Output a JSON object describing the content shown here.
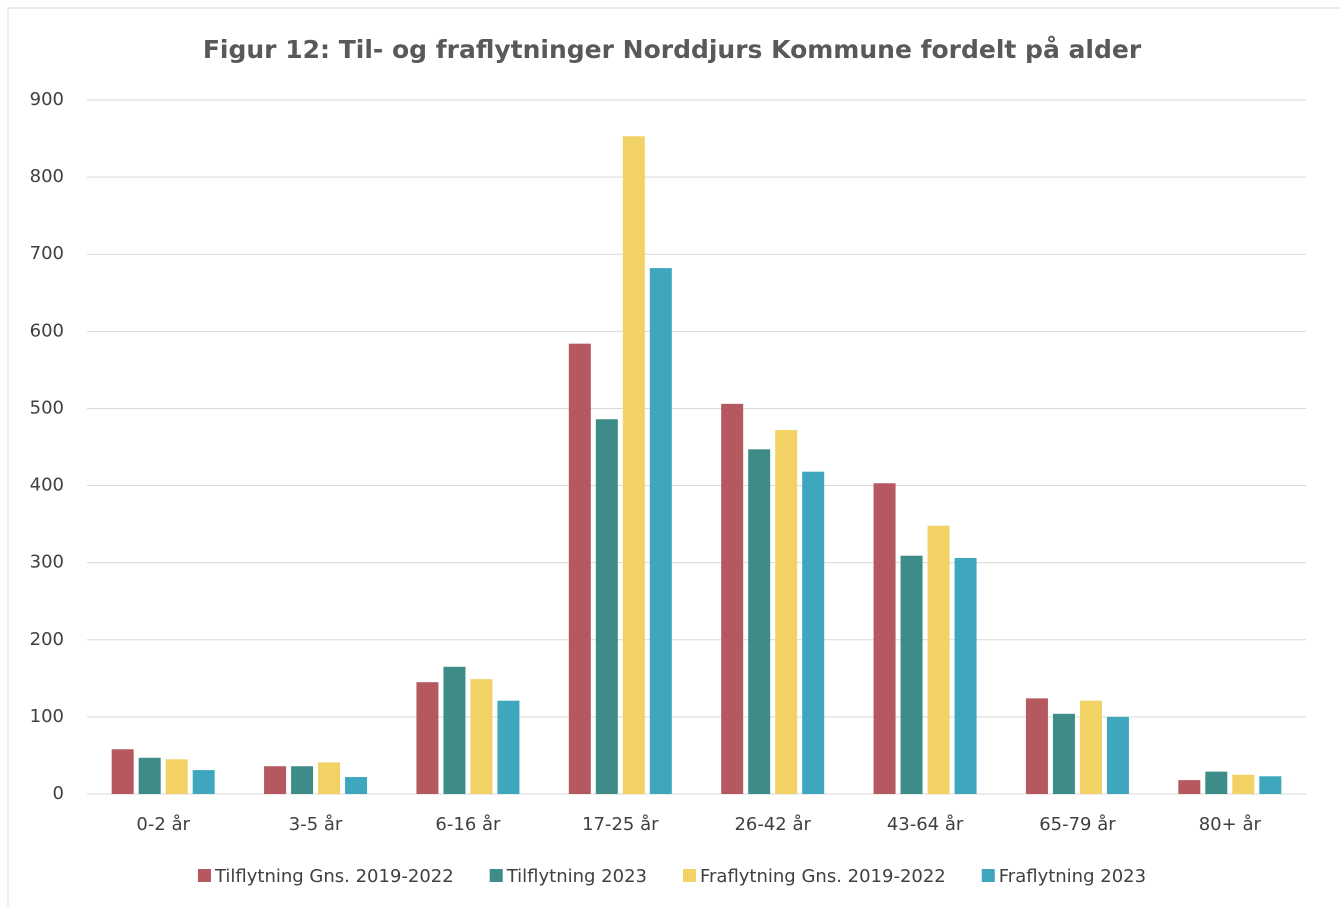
{
  "chart_data": {
    "type": "bar",
    "title": "Figur 12: Til- og fraflytninger Norddjurs Kommune fordelt på alder",
    "categories": [
      "0-2 år",
      "3-5 år",
      "6-16 år",
      "17-25 år",
      "26-42 år",
      "43-64 år",
      "65-79 år",
      "80+ år"
    ],
    "series": [
      {
        "name": "Tilflytning Gns. 2019-2022",
        "color": "#b5585f",
        "values": [
          58,
          36,
          145,
          584,
          506,
          403,
          124,
          18
        ]
      },
      {
        "name": "Tilflytning 2023",
        "color": "#3d8c87",
        "values": [
          47,
          36,
          165,
          486,
          447,
          309,
          104,
          29
        ]
      },
      {
        "name": "Fraflytning Gns. 2019-2022",
        "color": "#f2d264",
        "values": [
          45,
          41,
          149,
          853,
          472,
          348,
          121,
          25
        ]
      },
      {
        "name": "Fraflytning 2023",
        "color": "#3fa7bd",
        "values": [
          31,
          22,
          121,
          682,
          418,
          306,
          100,
          23
        ]
      }
    ],
    "ylim": [
      0,
      900
    ],
    "yticks": [
      0,
      100,
      200,
      300,
      400,
      500,
      600,
      700,
      800,
      900
    ],
    "grid": true,
    "legend": "bottom"
  }
}
